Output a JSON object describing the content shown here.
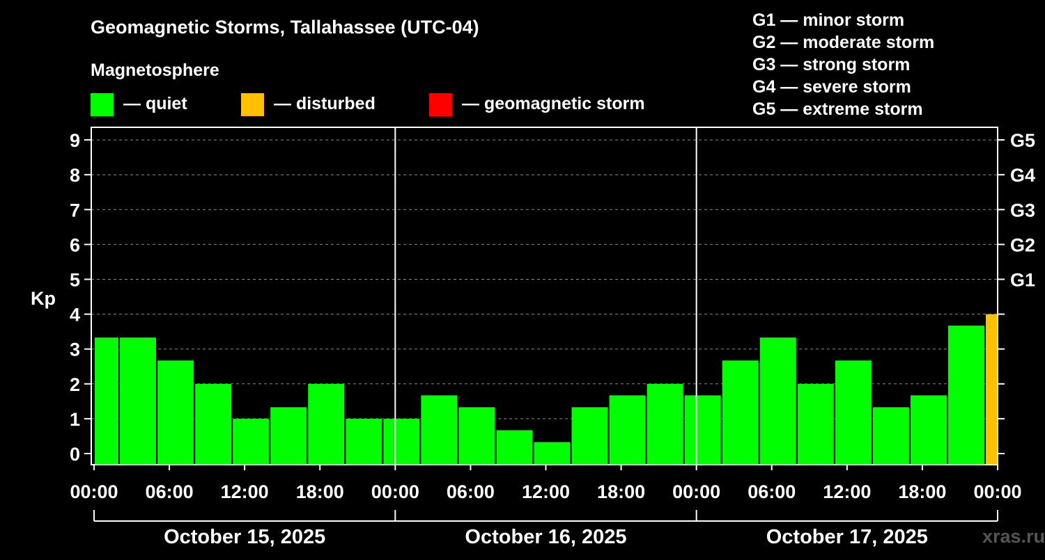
{
  "chart_data": {
    "type": "bar",
    "title": "Geomagnetic Storms, Tallahassee (UTC-04)",
    "legend_heading": "Magnetosphere",
    "legend": [
      {
        "label": "— quiet",
        "color": "#00ff00"
      },
      {
        "label": "— disturbed",
        "color": "#ffc000"
      },
      {
        "label": "— geomagnetic storm",
        "color": "#ff0000"
      }
    ],
    "storm_scale": [
      "G1 — minor storm",
      "G2 — moderate storm",
      "G3 — strong storm",
      "G4 — severe storm",
      "G5 — extreme storm"
    ],
    "ylabel": "Kp",
    "ylim": [
      0,
      9
    ],
    "yticks": [
      "0",
      "1",
      "2",
      "3",
      "4",
      "5",
      "6",
      "7",
      "8",
      "9"
    ],
    "right_axis": [
      {
        "kp": 5,
        "label": "G1"
      },
      {
        "kp": 6,
        "label": "G2"
      },
      {
        "kp": 7,
        "label": "G3"
      },
      {
        "kp": 8,
        "label": "G4"
      },
      {
        "kp": 9,
        "label": "G5"
      }
    ],
    "x_range_hours": [
      0,
      72
    ],
    "xticks": [
      {
        "hour": 0,
        "label": "00:00"
      },
      {
        "hour": 6,
        "label": "06:00"
      },
      {
        "hour": 12,
        "label": "12:00"
      },
      {
        "hour": 18,
        "label": "18:00"
      },
      {
        "hour": 24,
        "label": "00:00"
      },
      {
        "hour": 30,
        "label": "06:00"
      },
      {
        "hour": 36,
        "label": "12:00"
      },
      {
        "hour": 42,
        "label": "18:00"
      },
      {
        "hour": 48,
        "label": "00:00"
      },
      {
        "hour": 54,
        "label": "06:00"
      },
      {
        "hour": 60,
        "label": "12:00"
      },
      {
        "hour": 66,
        "label": "18:00"
      },
      {
        "hour": 72,
        "label": "00:00"
      }
    ],
    "days": [
      {
        "label": "October 15, 2025",
        "start_hour": 0,
        "end_hour": 24
      },
      {
        "label": "October 16, 2025",
        "start_hour": 24,
        "end_hour": 48
      },
      {
        "label": "October 17, 2025",
        "start_hour": 48,
        "end_hour": 72
      }
    ],
    "day_dividers_hours": [
      24,
      48
    ],
    "bars": [
      {
        "start": 0,
        "end": 2,
        "kp": 3.33,
        "status": "quiet"
      },
      {
        "start": 2,
        "end": 5,
        "kp": 3.33,
        "status": "quiet"
      },
      {
        "start": 5,
        "end": 8,
        "kp": 2.67,
        "status": "quiet"
      },
      {
        "start": 8,
        "end": 11,
        "kp": 2.0,
        "status": "quiet"
      },
      {
        "start": 11,
        "end": 14,
        "kp": 1.0,
        "status": "quiet"
      },
      {
        "start": 14,
        "end": 17,
        "kp": 1.33,
        "status": "quiet"
      },
      {
        "start": 17,
        "end": 20,
        "kp": 2.0,
        "status": "quiet"
      },
      {
        "start": 20,
        "end": 23,
        "kp": 1.0,
        "status": "quiet"
      },
      {
        "start": 23,
        "end": 26,
        "kp": 1.0,
        "status": "quiet"
      },
      {
        "start": 26,
        "end": 29,
        "kp": 1.67,
        "status": "quiet"
      },
      {
        "start": 29,
        "end": 32,
        "kp": 1.33,
        "status": "quiet"
      },
      {
        "start": 32,
        "end": 35,
        "kp": 0.67,
        "status": "quiet"
      },
      {
        "start": 35,
        "end": 38,
        "kp": 0.33,
        "status": "quiet"
      },
      {
        "start": 38,
        "end": 41,
        "kp": 1.33,
        "status": "quiet"
      },
      {
        "start": 41,
        "end": 44,
        "kp": 1.67,
        "status": "quiet"
      },
      {
        "start": 44,
        "end": 47,
        "kp": 2.0,
        "status": "quiet"
      },
      {
        "start": 47,
        "end": 50,
        "kp": 1.67,
        "status": "quiet"
      },
      {
        "start": 50,
        "end": 53,
        "kp": 2.67,
        "status": "quiet"
      },
      {
        "start": 53,
        "end": 56,
        "kp": 3.33,
        "status": "quiet"
      },
      {
        "start": 56,
        "end": 59,
        "kp": 2.0,
        "status": "quiet"
      },
      {
        "start": 59,
        "end": 62,
        "kp": 2.67,
        "status": "quiet"
      },
      {
        "start": 62,
        "end": 65,
        "kp": 1.33,
        "status": "quiet"
      },
      {
        "start": 65,
        "end": 68,
        "kp": 1.67,
        "status": "quiet"
      },
      {
        "start": 68,
        "end": 71,
        "kp": 3.67,
        "status": "quiet"
      },
      {
        "start": 71,
        "end": 72,
        "kp": 4.0,
        "status": "disturbed"
      }
    ],
    "status_colors": {
      "quiet": "#00ff00",
      "disturbed": "#ffc000",
      "storm": "#ff0000"
    },
    "grid": true
  },
  "watermark": "xras.ru"
}
